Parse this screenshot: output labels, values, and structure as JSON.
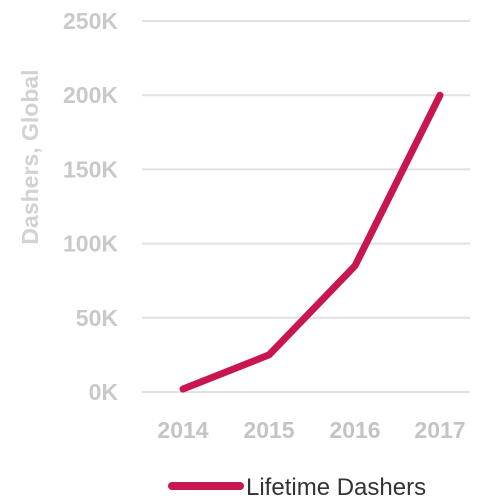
{
  "chart_data": {
    "type": "line",
    "x": [
      "2014",
      "2015",
      "2016",
      "2017"
    ],
    "series": [
      {
        "name": "Lifetime Dashers",
        "values": [
          2000,
          25000,
          85000,
          200000
        ],
        "color": "#c8174f"
      }
    ],
    "ylabel": "Dashers, Global",
    "xlabel": "",
    "ylim": [
      0,
      250000
    ],
    "yticks": [
      0,
      50000,
      100000,
      150000,
      200000,
      250000
    ],
    "ytick_labels": [
      "0K",
      "50K",
      "100K",
      "150K",
      "200K",
      "250K"
    ],
    "grid": true,
    "legend": "bottom-center"
  }
}
